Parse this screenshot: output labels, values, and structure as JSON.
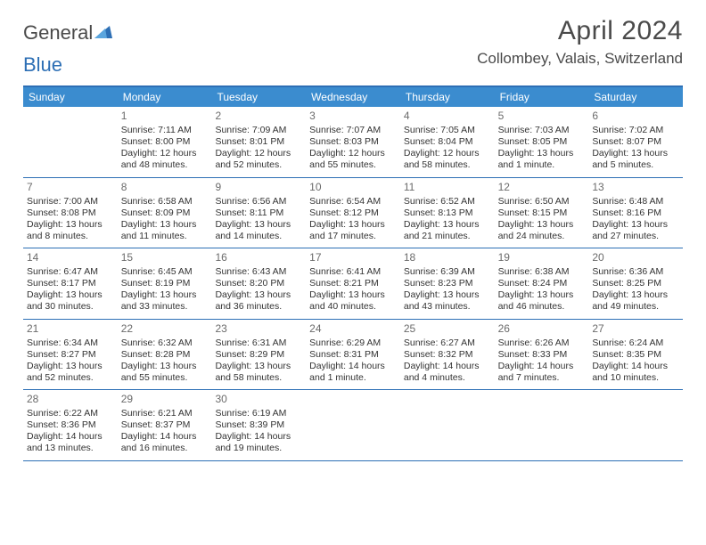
{
  "logo": {
    "text1": "General",
    "text2": "Blue"
  },
  "title": "April 2024",
  "location": "Collombey, Valais, Switzerland",
  "colors": {
    "header_bg": "#3b8ccf",
    "header_border": "#2d6fb5",
    "text": "#333333",
    "muted": "#6b6b6b",
    "white": "#ffffff"
  },
  "day_headers": [
    "Sunday",
    "Monday",
    "Tuesday",
    "Wednesday",
    "Thursday",
    "Friday",
    "Saturday"
  ],
  "weeks": [
    [
      {
        "n": "",
        "sr": "",
        "ss": "",
        "dl": ""
      },
      {
        "n": "1",
        "sr": "Sunrise: 7:11 AM",
        "ss": "Sunset: 8:00 PM",
        "dl": "Daylight: 12 hours and 48 minutes."
      },
      {
        "n": "2",
        "sr": "Sunrise: 7:09 AM",
        "ss": "Sunset: 8:01 PM",
        "dl": "Daylight: 12 hours and 52 minutes."
      },
      {
        "n": "3",
        "sr": "Sunrise: 7:07 AM",
        "ss": "Sunset: 8:03 PM",
        "dl": "Daylight: 12 hours and 55 minutes."
      },
      {
        "n": "4",
        "sr": "Sunrise: 7:05 AM",
        "ss": "Sunset: 8:04 PM",
        "dl": "Daylight: 12 hours and 58 minutes."
      },
      {
        "n": "5",
        "sr": "Sunrise: 7:03 AM",
        "ss": "Sunset: 8:05 PM",
        "dl": "Daylight: 13 hours and 1 minute."
      },
      {
        "n": "6",
        "sr": "Sunrise: 7:02 AM",
        "ss": "Sunset: 8:07 PM",
        "dl": "Daylight: 13 hours and 5 minutes."
      }
    ],
    [
      {
        "n": "7",
        "sr": "Sunrise: 7:00 AM",
        "ss": "Sunset: 8:08 PM",
        "dl": "Daylight: 13 hours and 8 minutes."
      },
      {
        "n": "8",
        "sr": "Sunrise: 6:58 AM",
        "ss": "Sunset: 8:09 PM",
        "dl": "Daylight: 13 hours and 11 minutes."
      },
      {
        "n": "9",
        "sr": "Sunrise: 6:56 AM",
        "ss": "Sunset: 8:11 PM",
        "dl": "Daylight: 13 hours and 14 minutes."
      },
      {
        "n": "10",
        "sr": "Sunrise: 6:54 AM",
        "ss": "Sunset: 8:12 PM",
        "dl": "Daylight: 13 hours and 17 minutes."
      },
      {
        "n": "11",
        "sr": "Sunrise: 6:52 AM",
        "ss": "Sunset: 8:13 PM",
        "dl": "Daylight: 13 hours and 21 minutes."
      },
      {
        "n": "12",
        "sr": "Sunrise: 6:50 AM",
        "ss": "Sunset: 8:15 PM",
        "dl": "Daylight: 13 hours and 24 minutes."
      },
      {
        "n": "13",
        "sr": "Sunrise: 6:48 AM",
        "ss": "Sunset: 8:16 PM",
        "dl": "Daylight: 13 hours and 27 minutes."
      }
    ],
    [
      {
        "n": "14",
        "sr": "Sunrise: 6:47 AM",
        "ss": "Sunset: 8:17 PM",
        "dl": "Daylight: 13 hours and 30 minutes."
      },
      {
        "n": "15",
        "sr": "Sunrise: 6:45 AM",
        "ss": "Sunset: 8:19 PM",
        "dl": "Daylight: 13 hours and 33 minutes."
      },
      {
        "n": "16",
        "sr": "Sunrise: 6:43 AM",
        "ss": "Sunset: 8:20 PM",
        "dl": "Daylight: 13 hours and 36 minutes."
      },
      {
        "n": "17",
        "sr": "Sunrise: 6:41 AM",
        "ss": "Sunset: 8:21 PM",
        "dl": "Daylight: 13 hours and 40 minutes."
      },
      {
        "n": "18",
        "sr": "Sunrise: 6:39 AM",
        "ss": "Sunset: 8:23 PM",
        "dl": "Daylight: 13 hours and 43 minutes."
      },
      {
        "n": "19",
        "sr": "Sunrise: 6:38 AM",
        "ss": "Sunset: 8:24 PM",
        "dl": "Daylight: 13 hours and 46 minutes."
      },
      {
        "n": "20",
        "sr": "Sunrise: 6:36 AM",
        "ss": "Sunset: 8:25 PM",
        "dl": "Daylight: 13 hours and 49 minutes."
      }
    ],
    [
      {
        "n": "21",
        "sr": "Sunrise: 6:34 AM",
        "ss": "Sunset: 8:27 PM",
        "dl": "Daylight: 13 hours and 52 minutes."
      },
      {
        "n": "22",
        "sr": "Sunrise: 6:32 AM",
        "ss": "Sunset: 8:28 PM",
        "dl": "Daylight: 13 hours and 55 minutes."
      },
      {
        "n": "23",
        "sr": "Sunrise: 6:31 AM",
        "ss": "Sunset: 8:29 PM",
        "dl": "Daylight: 13 hours and 58 minutes."
      },
      {
        "n": "24",
        "sr": "Sunrise: 6:29 AM",
        "ss": "Sunset: 8:31 PM",
        "dl": "Daylight: 14 hours and 1 minute."
      },
      {
        "n": "25",
        "sr": "Sunrise: 6:27 AM",
        "ss": "Sunset: 8:32 PM",
        "dl": "Daylight: 14 hours and 4 minutes."
      },
      {
        "n": "26",
        "sr": "Sunrise: 6:26 AM",
        "ss": "Sunset: 8:33 PM",
        "dl": "Daylight: 14 hours and 7 minutes."
      },
      {
        "n": "27",
        "sr": "Sunrise: 6:24 AM",
        "ss": "Sunset: 8:35 PM",
        "dl": "Daylight: 14 hours and 10 minutes."
      }
    ],
    [
      {
        "n": "28",
        "sr": "Sunrise: 6:22 AM",
        "ss": "Sunset: 8:36 PM",
        "dl": "Daylight: 14 hours and 13 minutes."
      },
      {
        "n": "29",
        "sr": "Sunrise: 6:21 AM",
        "ss": "Sunset: 8:37 PM",
        "dl": "Daylight: 14 hours and 16 minutes."
      },
      {
        "n": "30",
        "sr": "Sunrise: 6:19 AM",
        "ss": "Sunset: 8:39 PM",
        "dl": "Daylight: 14 hours and 19 minutes."
      },
      {
        "n": "",
        "sr": "",
        "ss": "",
        "dl": ""
      },
      {
        "n": "",
        "sr": "",
        "ss": "",
        "dl": ""
      },
      {
        "n": "",
        "sr": "",
        "ss": "",
        "dl": ""
      },
      {
        "n": "",
        "sr": "",
        "ss": "",
        "dl": ""
      }
    ]
  ]
}
